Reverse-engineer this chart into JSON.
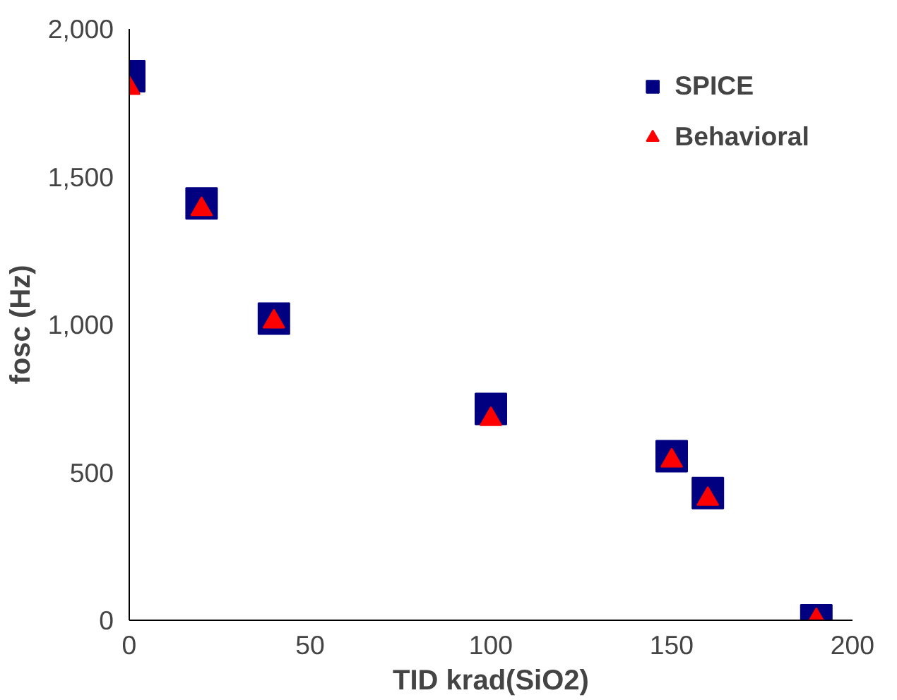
{
  "chart_data": {
    "type": "scatter",
    "xlabel": "TID krad(SiO2)",
    "ylabel": "fosc (Hz)",
    "x": [
      0,
      20,
      40,
      100,
      150,
      160,
      190
    ],
    "series": [
      {
        "name": "SPICE",
        "color": "#000080",
        "marker": "square",
        "values": [
          1840,
          1410,
          1020,
          715,
          555,
          430,
          0
        ]
      },
      {
        "name": "Behavioral",
        "color": "#ff0000",
        "marker": "triangle",
        "values": [
          1800,
          1390,
          1010,
          680,
          540,
          410,
          0
        ]
      }
    ],
    "xlim": [
      0,
      200
    ],
    "ylim": [
      0,
      2000
    ],
    "xticks": [
      0,
      50,
      100,
      150,
      200
    ],
    "yticks": [
      0,
      {
        "value": 500,
        "label": "500"
      },
      {
        "value": 1000,
        "label": "1,000"
      },
      {
        "value": 1500,
        "label": "1,500"
      },
      {
        "value": 2000,
        "label": "2,000"
      }
    ],
    "grid": false,
    "legend": "top right"
  }
}
